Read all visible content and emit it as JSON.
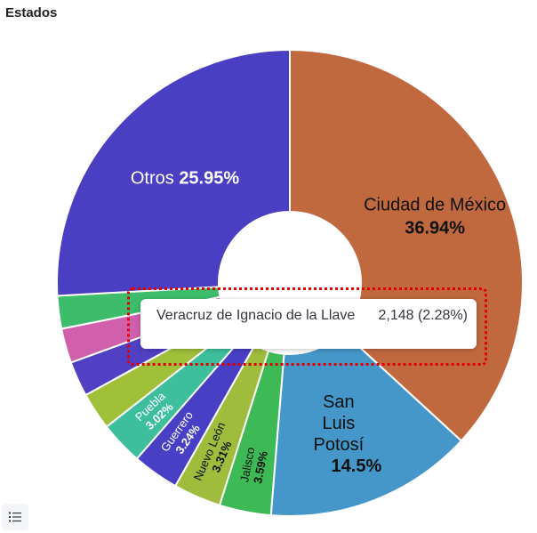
{
  "panel": {
    "title": "Estados"
  },
  "chart_data": {
    "type": "pie",
    "donut": true,
    "title": "Estados",
    "slices": [
      {
        "label": "Ciudad de México",
        "percent_label": "36.94%",
        "value": 36.94,
        "color": "#c0693f",
        "show_label": true
      },
      {
        "label": "San Luis Potosí",
        "percent_label": "14.5%",
        "value": 14.5,
        "color": "#4597c9",
        "show_label": true
      },
      {
        "label": "Jalisco",
        "percent_label": "3.59%",
        "value": 3.59,
        "color": "#3db955",
        "show_label": true
      },
      {
        "label": "Nuevo León",
        "percent_label": "3.31%",
        "value": 3.31,
        "color": "#9fbc3c",
        "show_label": true
      },
      {
        "label": "Guerrero",
        "percent_label": "3.24%",
        "value": 3.24,
        "color": "#4840c4",
        "show_label": true
      },
      {
        "label": "Puebla",
        "percent_label": "3.02%",
        "value": 3.02,
        "color": "#3dbf9c",
        "show_label": true
      },
      {
        "label": "",
        "percent_label": "",
        "value": 2.6,
        "color": "#a0c03a",
        "show_label": false
      },
      {
        "label": "",
        "percent_label": "",
        "value": 2.45,
        "color": "#5240c4",
        "show_label": false
      },
      {
        "label": "",
        "percent_label": "",
        "value": 2.4,
        "color": "#d060ac",
        "show_label": false
      },
      {
        "label": "Veracruz de Ignacio de la Llave",
        "percent_label": "2.28%",
        "value": 2.28,
        "color": "#3dbd6c",
        "show_label": false
      },
      {
        "label": "Otros",
        "percent_label": "25.95%",
        "value": 25.95,
        "color": "#4a3fc2",
        "show_label": true
      }
    ]
  },
  "tooltip": {
    "label": "Veracruz de Ignacio de la Llave",
    "value": "2,148 (2.28%)"
  },
  "legend_toggle": {
    "icon": "list-icon"
  }
}
